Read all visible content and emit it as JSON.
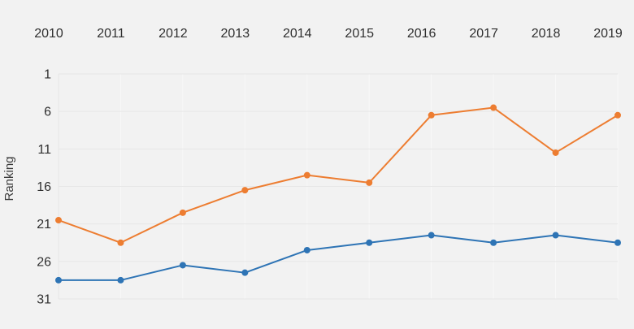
{
  "page": {
    "background_color": "#f2f2f2"
  },
  "chart_data": {
    "type": "line",
    "title": "",
    "ylabel": "Ranking",
    "xlabel": "",
    "x_axis_position": "top",
    "x": [
      "2010",
      "2011",
      "2012",
      "2013",
      "2014",
      "2015",
      "2016",
      "2017",
      "2018",
      "2019"
    ],
    "yticks": [
      1,
      6,
      11,
      16,
      21,
      26,
      31
    ],
    "ylim": [
      1,
      31
    ],
    "y_axis_reversed": true,
    "grid": true,
    "legend": "none",
    "text_color": "#2f2f2f",
    "gridline_color_horizontal": "#e7e7e7",
    "gridline_color_vertical": "#f8f8f8",
    "series": [
      {
        "name": "orange-series",
        "color": "#ED7D31",
        "values": [
          20.5,
          23.5,
          19.5,
          16.5,
          14.5,
          15.5,
          6.5,
          5.5,
          11.5,
          6.5
        ]
      },
      {
        "name": "blue-series",
        "color": "#2E74B5",
        "values": [
          28.5,
          28.5,
          26.5,
          27.5,
          24.5,
          23.5,
          22.5,
          23.5,
          22.5,
          23.5
        ]
      }
    ]
  }
}
